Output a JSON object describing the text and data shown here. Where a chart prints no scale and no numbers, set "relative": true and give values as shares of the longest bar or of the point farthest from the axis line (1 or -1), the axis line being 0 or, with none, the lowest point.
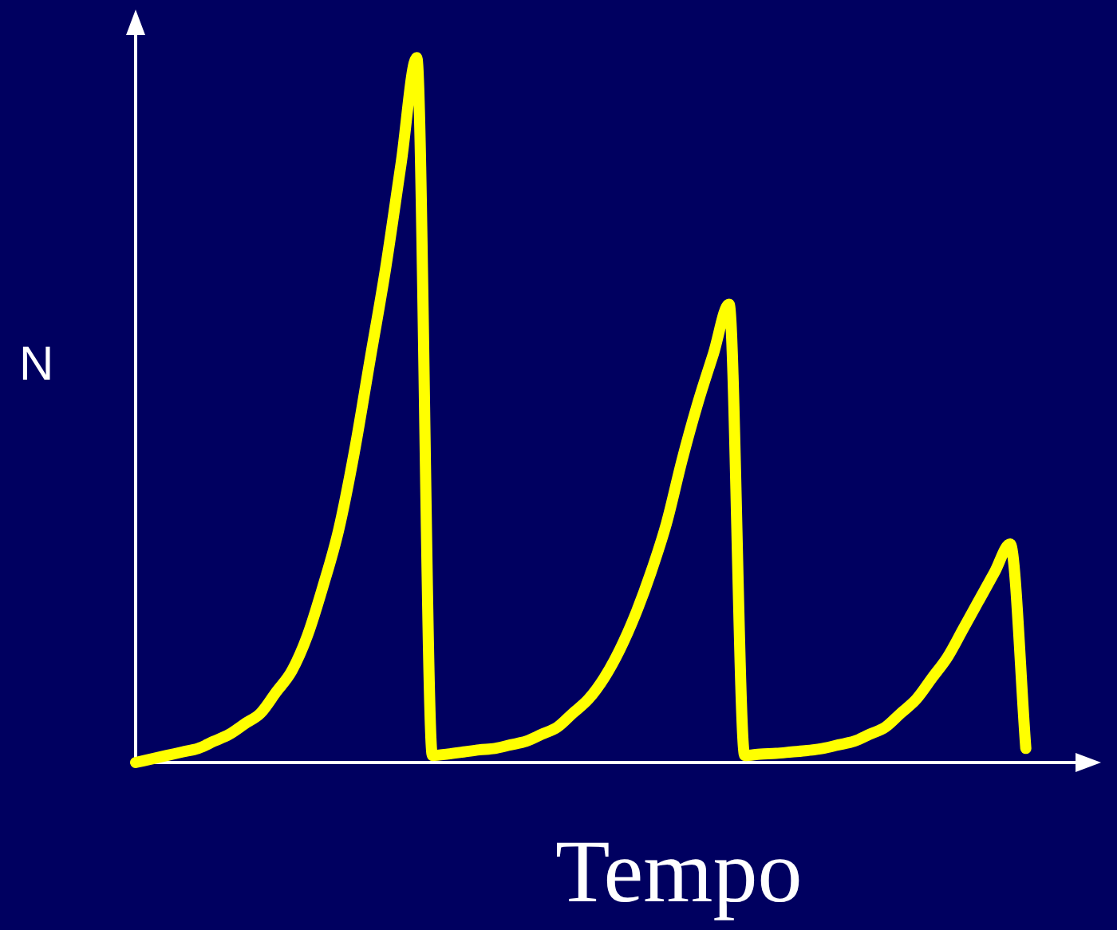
{
  "chart_data": {
    "type": "line",
    "relative": true,
    "xlabel": "Tempo",
    "ylabel": "N",
    "grid": false,
    "legend": false,
    "categories": [
      null,
      null,
      null,
      null,
      null,
      null,
      null,
      null,
      null,
      null,
      null,
      null,
      null,
      null,
      null,
      null,
      null,
      null,
      null,
      null,
      null,
      null,
      null,
      null,
      null,
      null,
      null,
      null,
      null,
      null,
      null,
      null,
      null,
      null,
      null,
      null,
      null,
      null,
      null,
      null,
      null,
      null,
      null,
      null,
      null,
      null,
      null,
      null,
      null,
      null,
      null,
      null,
      null,
      null,
      null,
      null,
      null,
      null,
      null,
      null,
      null,
      null
    ],
    "series": [
      {
        "color": "#ffff00",
        "values": [
          0,
          0.005,
          0.01,
          0.015,
          0.02,
          0.03,
          0.04,
          0.055,
          0.07,
          0.1,
          0.13,
          0.18,
          0.25,
          0.33,
          0.44,
          0.57,
          0.7,
          0.85,
          1,
          0.01,
          0.012,
          0.015,
          0.018,
          0.02,
          0.025,
          0.03,
          0.04,
          0.05,
          0.07,
          0.09,
          0.12,
          0.16,
          0.21,
          0.27,
          0.34,
          0.43,
          0.51,
          0.58,
          0.65,
          0.01,
          0.012,
          0.013,
          0.015,
          0.017,
          0.02,
          0.025,
          0.03,
          0.04,
          0.05,
          0.07,
          0.09,
          0.12,
          0.15,
          0.19,
          0.23,
          0.27,
          0.31,
          0.02,
          null,
          null,
          null,
          null
        ]
      }
    ]
  }
}
